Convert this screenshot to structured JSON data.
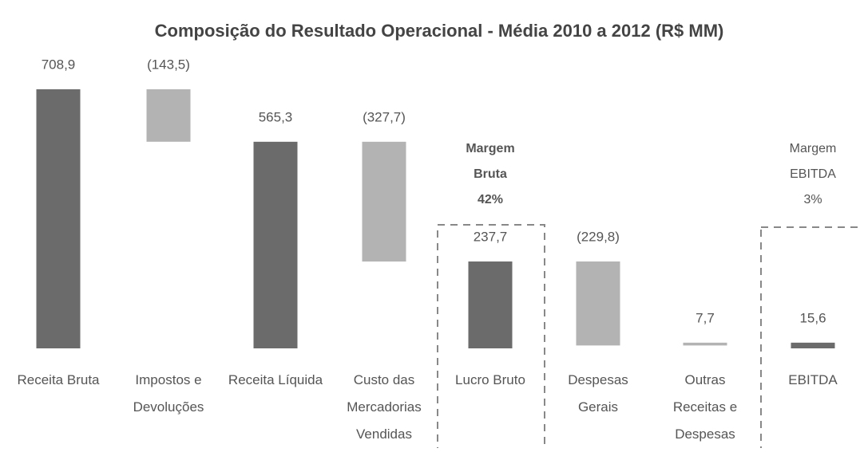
{
  "chart_data": {
    "type": "waterfall",
    "title": "Composição do Resultado Operacional - Média 2010 a 2012 (R$ MM)",
    "categories": [
      [
        "Receita Bruta"
      ],
      [
        "Impostos e",
        "Devoluções"
      ],
      [
        "Receita Líquida"
      ],
      [
        "Custo das",
        "Mercadorias",
        "Vendidas"
      ],
      [
        "Lucro Bruto"
      ],
      [
        "Despesas",
        "Gerais"
      ],
      [
        "Outras",
        "Receitas e",
        "Despesas"
      ],
      [
        "EBITDA"
      ]
    ],
    "values": [
      708.9,
      -143.5,
      565.3,
      -327.7,
      237.7,
      -229.8,
      7.7,
      15.6
    ],
    "value_labels": [
      "708,9",
      "(143,5)",
      "565,3",
      "(327,7)",
      "237,7",
      "(229,8)",
      "7,7",
      "15,6"
    ],
    "kinds": [
      "total",
      "change",
      "total",
      "change",
      "total",
      "change",
      "change",
      "total"
    ],
    "colors": {
      "total": "#6b6b6b",
      "change": "#b3b3b3"
    },
    "annotations": [
      {
        "lines": [
          "Margem",
          "Bruta",
          "42%"
        ]
      },
      {
        "lines": [
          "Margem",
          "EBITDA",
          "3%"
        ]
      }
    ]
  }
}
